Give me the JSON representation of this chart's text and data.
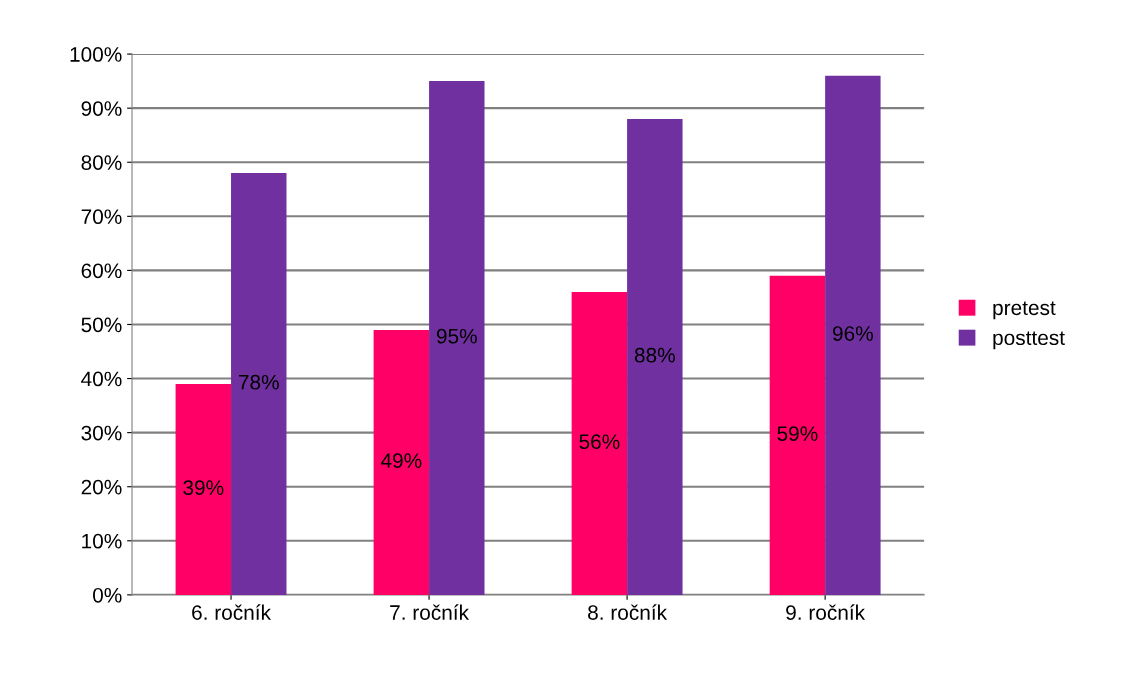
{
  "chart_data": {
    "type": "bar",
    "categories": [
      "6. ročník",
      "7. ročník",
      "8. ročník",
      "9. ročník"
    ],
    "series": [
      {
        "name": "pretest",
        "color": "#ff0066",
        "values": [
          39,
          49,
          56,
          59
        ],
        "value_labels": [
          "39%",
          "49%",
          "56%",
          "59%"
        ]
      },
      {
        "name": "posttest",
        "color": "#7030a0",
        "values": [
          78,
          95,
          88,
          96
        ],
        "value_labels": [
          "78%",
          "95%",
          "88%",
          "96%"
        ]
      }
    ],
    "ylim": [
      0,
      100
    ],
    "yticks": [
      {
        "value": 0,
        "label": "0%"
      },
      {
        "value": 10,
        "label": "10%"
      },
      {
        "value": 20,
        "label": "20%"
      },
      {
        "value": 30,
        "label": "30%"
      },
      {
        "value": 40,
        "label": "40%"
      },
      {
        "value": 50,
        "label": "50%"
      },
      {
        "value": 60,
        "label": "60%"
      },
      {
        "value": 70,
        "label": "70%"
      },
      {
        "value": 80,
        "label": "80%"
      },
      {
        "value": 90,
        "label": "90%"
      },
      {
        "value": 100,
        "label": "100%"
      }
    ],
    "grid": "y",
    "legend": "right"
  }
}
